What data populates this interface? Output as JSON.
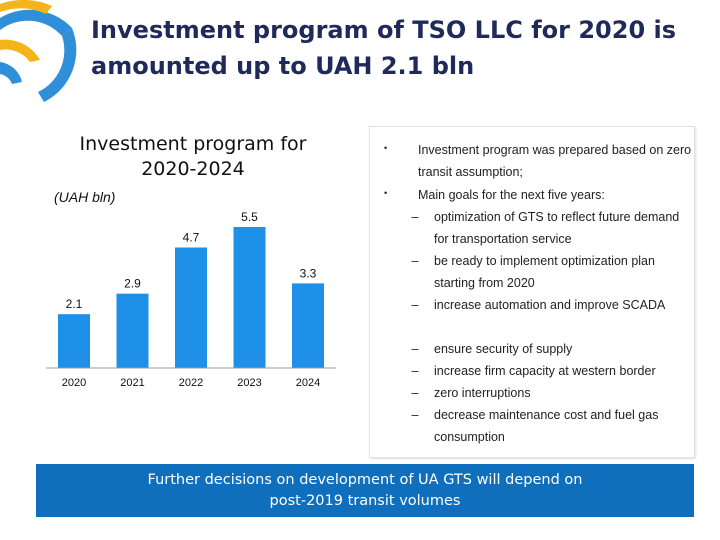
{
  "header": {
    "title": "Investment program of TSO LLC for 2020 is amounted up to UAH 2.1 bln"
  },
  "chart_data": {
    "type": "bar",
    "title": "Investment program for 2020-2024",
    "ylabel": "(UAH bln)",
    "categories": [
      "2020",
      "2021",
      "2022",
      "2023",
      "2024"
    ],
    "values": [
      2.1,
      2.9,
      4.7,
      5.5,
      3.3
    ],
    "ylim": [
      0,
      5.5
    ],
    "grid": false,
    "legend": "none",
    "bar_color": "#1e90e8",
    "axis_color": "#9a9a9a"
  },
  "panel": {
    "bullets": [
      {
        "text": "Investment program was prepared based on zero transit assumption;"
      },
      {
        "text": "Main goals for the next five years:"
      }
    ],
    "goals": [
      "optimization of GTS to reflect future demand for transportation service",
      "be ready to implement optimization plan starting from 2020",
      "increase automation and improve SCADA",
      "ensure security of supply",
      "increase firm capacity at western border",
      "zero interruptions",
      "decrease maintenance cost and fuel gas consumption"
    ]
  },
  "banner": {
    "text": "Further decisions on development of UA GTS will depend on post-2019 transit volumes"
  },
  "colors": {
    "logo_blue": "#2f8fd8",
    "logo_yellow": "#f4b41a",
    "banner": "#0f6fbd"
  }
}
